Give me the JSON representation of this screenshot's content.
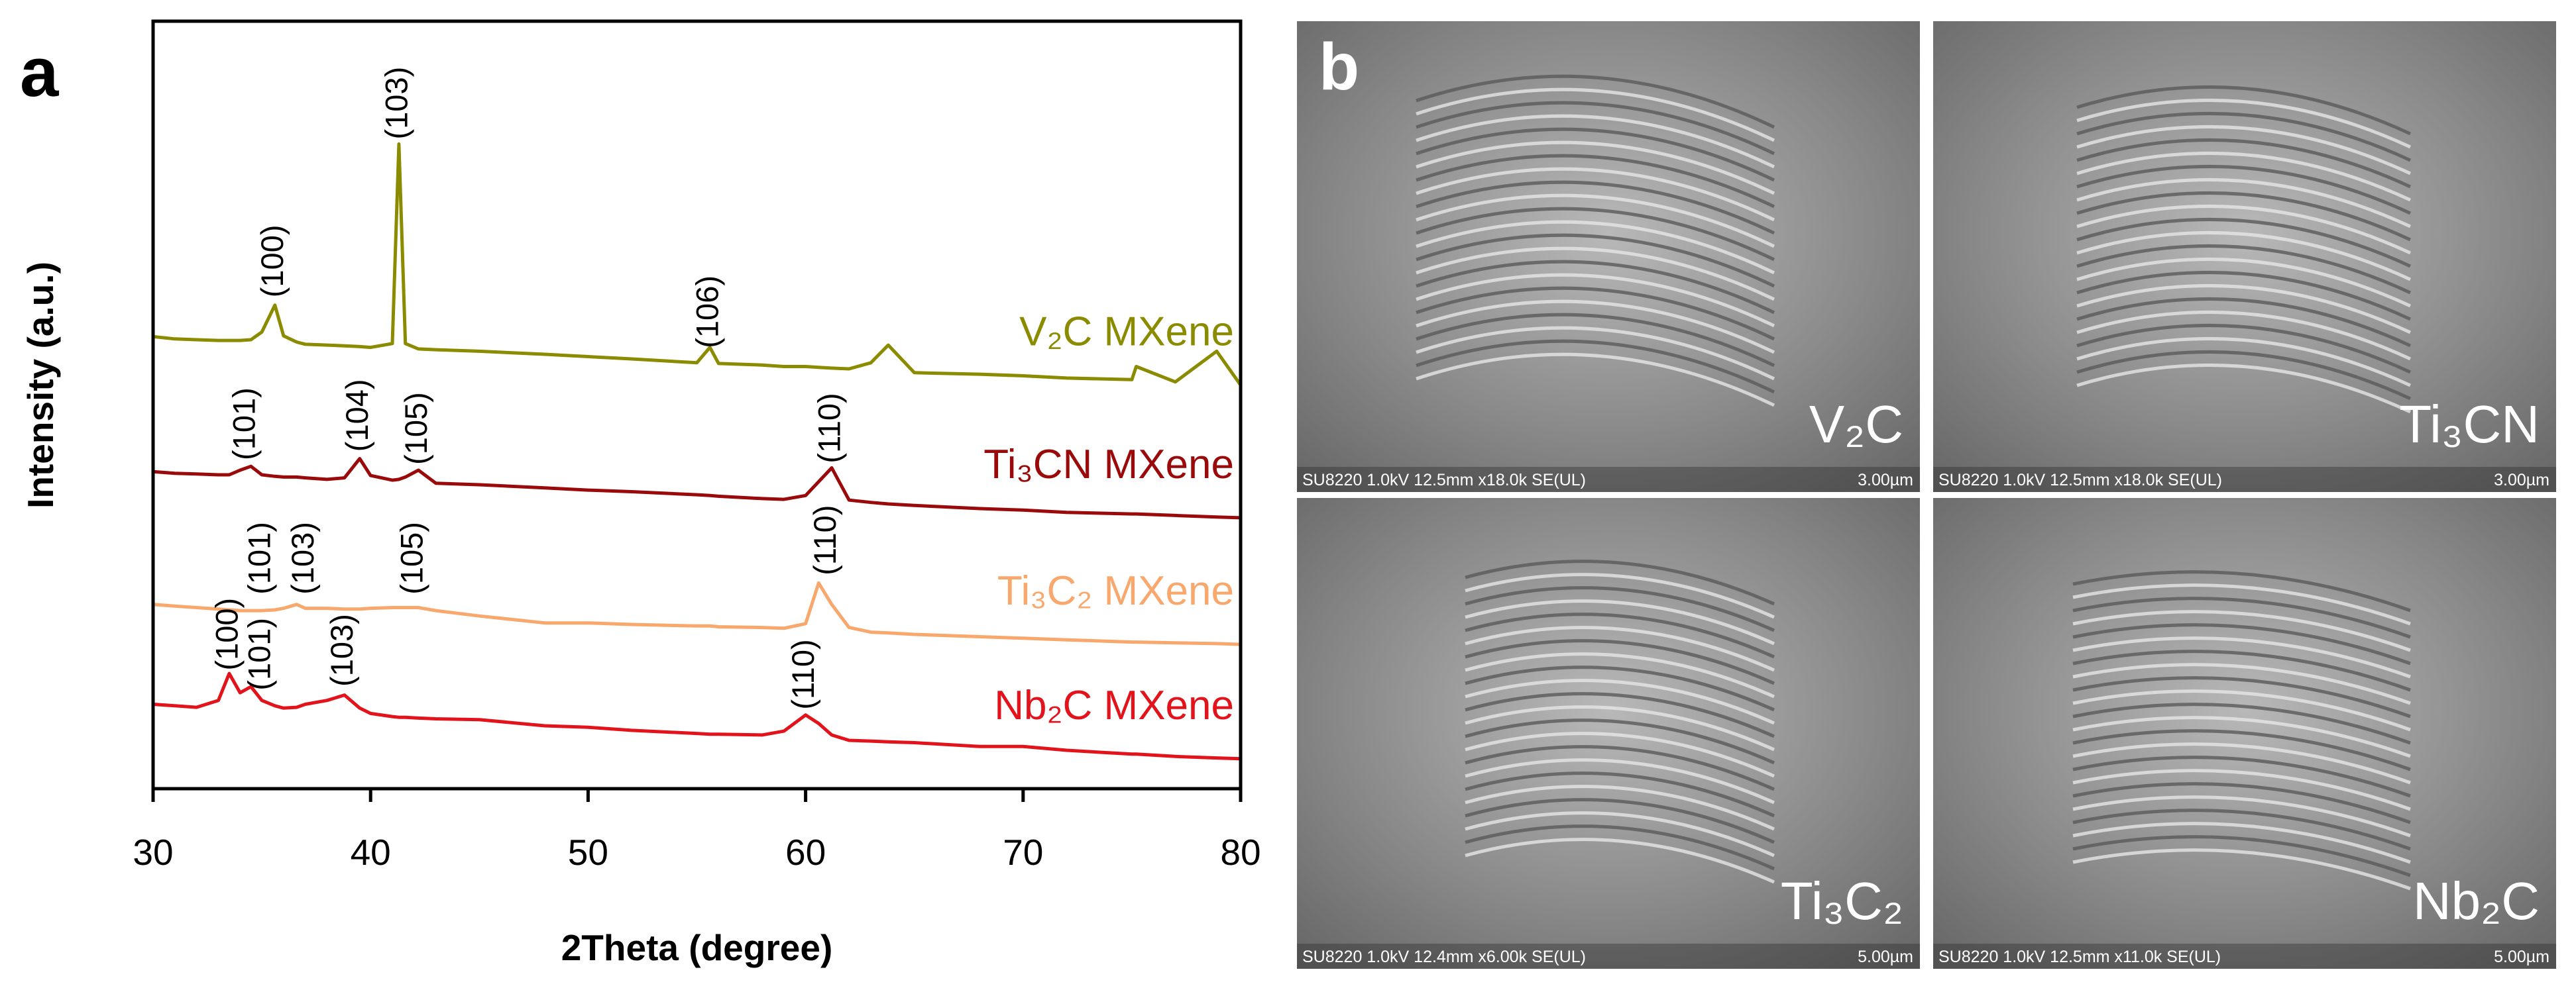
{
  "panel_labels": {
    "a": "a",
    "b": "b"
  },
  "chart_data": {
    "type": "line",
    "xlabel": "2Theta (degree)",
    "ylabel": "Intensity (a.u.)",
    "xlim": [
      30,
      80
    ],
    "xticks": [
      30,
      40,
      50,
      60,
      70,
      80
    ],
    "ylim": [
      0,
      100
    ],
    "x": [
      30,
      31,
      32,
      33,
      33.5,
      34,
      34.5,
      35,
      35.6,
      36,
      36.6,
      37,
      38,
      38.8,
      39.5,
      40,
      41,
      41.3,
      41.6,
      42.2,
      43,
      45,
      48,
      50,
      52,
      55,
      55.6,
      56,
      58,
      59,
      60,
      60.6,
      61.2,
      62,
      63,
      63.8,
      65,
      68,
      70,
      72,
      75,
      75.2,
      77,
      78.9,
      80
    ],
    "series": [
      {
        "name": "V₂C MXene",
        "color": "#8b8b00",
        "values": [
          58.9,
          58.6,
          58.5,
          58.4,
          58.4,
          58.4,
          58.5,
          59.5,
          63,
          59,
          58.2,
          57.9,
          57.8,
          57.7,
          57.6,
          57.5,
          58,
          84,
          58,
          57.3,
          57.2,
          57,
          56.6,
          56.3,
          56,
          55.5,
          57.5,
          55.4,
          55.2,
          55,
          55,
          54.9,
          54.8,
          54.7,
          55.5,
          57.8,
          54.2,
          54,
          53.8,
          53.5,
          53.3,
          55,
          53,
          57,
          52.6
        ]
      },
      {
        "name": "Ti₃CN MXene",
        "color": "#9b0a0a",
        "values": [
          41.3,
          41.1,
          41,
          40.9,
          40.9,
          41.5,
          42,
          40.9,
          40.7,
          40.6,
          40.6,
          40.5,
          40.3,
          40.5,
          43,
          40.8,
          40.2,
          40.3,
          40.6,
          41.5,
          39.8,
          39.6,
          39.2,
          38.9,
          38.7,
          38.3,
          38.2,
          38.1,
          37.8,
          37.7,
          38.2,
          40,
          41.8,
          37.6,
          37.3,
          37.1,
          36.9,
          36.5,
          36.3,
          36,
          35.8,
          35.8,
          35.6,
          35.4,
          35.3
        ]
      },
      {
        "name": "Ti₃C₂ MXene",
        "color": "#f8a86c",
        "values": [
          24,
          23.8,
          23.6,
          23.4,
          23.3,
          23.2,
          23.2,
          23.2,
          23.3,
          23.5,
          24,
          23.5,
          23.5,
          23.4,
          23.4,
          23.5,
          23.6,
          23.6,
          23.6,
          23.6,
          23.2,
          22.5,
          21.6,
          21.6,
          21.4,
          21.2,
          21.2,
          21.1,
          21,
          20.9,
          21.5,
          26.8,
          24,
          21,
          20.4,
          20.3,
          20.1,
          19.8,
          19.6,
          19.4,
          19.1,
          19.1,
          19,
          18.9,
          18.8
        ]
      },
      {
        "name": "Nb₂C MXene",
        "color": "#e3131b",
        "values": [
          11,
          10.8,
          10.6,
          11.5,
          15,
          12.5,
          13.3,
          11.5,
          10.8,
          10.5,
          10.6,
          11,
          11.5,
          12.2,
          10.5,
          9.8,
          9.4,
          9.3,
          9.3,
          9.2,
          9.1,
          9,
          8.2,
          8,
          7.6,
          7.2,
          7.1,
          7.1,
          7,
          7.5,
          9.6,
          8.5,
          7,
          6.3,
          6.2,
          6.1,
          6,
          5.5,
          5.5,
          5,
          4.5,
          4.5,
          4.2,
          4,
          3.9
        ]
      }
    ],
    "annotations": [
      {
        "text": "(100)",
        "x": 35.6,
        "y": 64
      },
      {
        "text": "(103)",
        "x": 41.3,
        "y": 84.6
      },
      {
        "text": "(106)",
        "x": 55.6,
        "y": 57.4
      },
      {
        "text": "(101)",
        "x": 34.3,
        "y": 42.8
      },
      {
        "text": "(104)",
        "x": 39.5,
        "y": 43.9
      },
      {
        "text": "(105)",
        "x": 42.2,
        "y": 42.2
      },
      {
        "text": "(110)",
        "x": 61.2,
        "y": 42.4
      },
      {
        "text": "(101)",
        "x": 35.0,
        "y": 25.3
      },
      {
        "text": "(103)",
        "x": 37.0,
        "y": 25.3
      },
      {
        "text": "(105)",
        "x": 42.0,
        "y": 25.3
      },
      {
        "text": "(110)",
        "x": 61.0,
        "y": 27.8
      },
      {
        "text": "(100)",
        "x": 33.5,
        "y": 15.4
      },
      {
        "text": "(101)",
        "x": 35.0,
        "y": 12.8
      },
      {
        "text": "(103)",
        "x": 38.8,
        "y": 13.3
      },
      {
        "text": "(110)",
        "x": 60.0,
        "y": 10.3
      }
    ]
  },
  "sem_images": [
    {
      "label": "V₂C",
      "info": "SU8220 1.0kV 12.5mm x18.0k SE(UL)",
      "scale": "3.00µm"
    },
    {
      "label": "Ti₃CN",
      "info": "SU8220 1.0kV 12.5mm x18.0k SE(UL)",
      "scale": "3.00µm"
    },
    {
      "label": "Ti₃C₂",
      "info": "SU8220 1.0kV 12.4mm x6.00k SE(UL)",
      "scale": "5.00µm"
    },
    {
      "label": "Nb₂C",
      "info": "SU8220 1.0kV 12.5mm x11.0k SE(UL)",
      "scale": "5.00µm"
    }
  ]
}
